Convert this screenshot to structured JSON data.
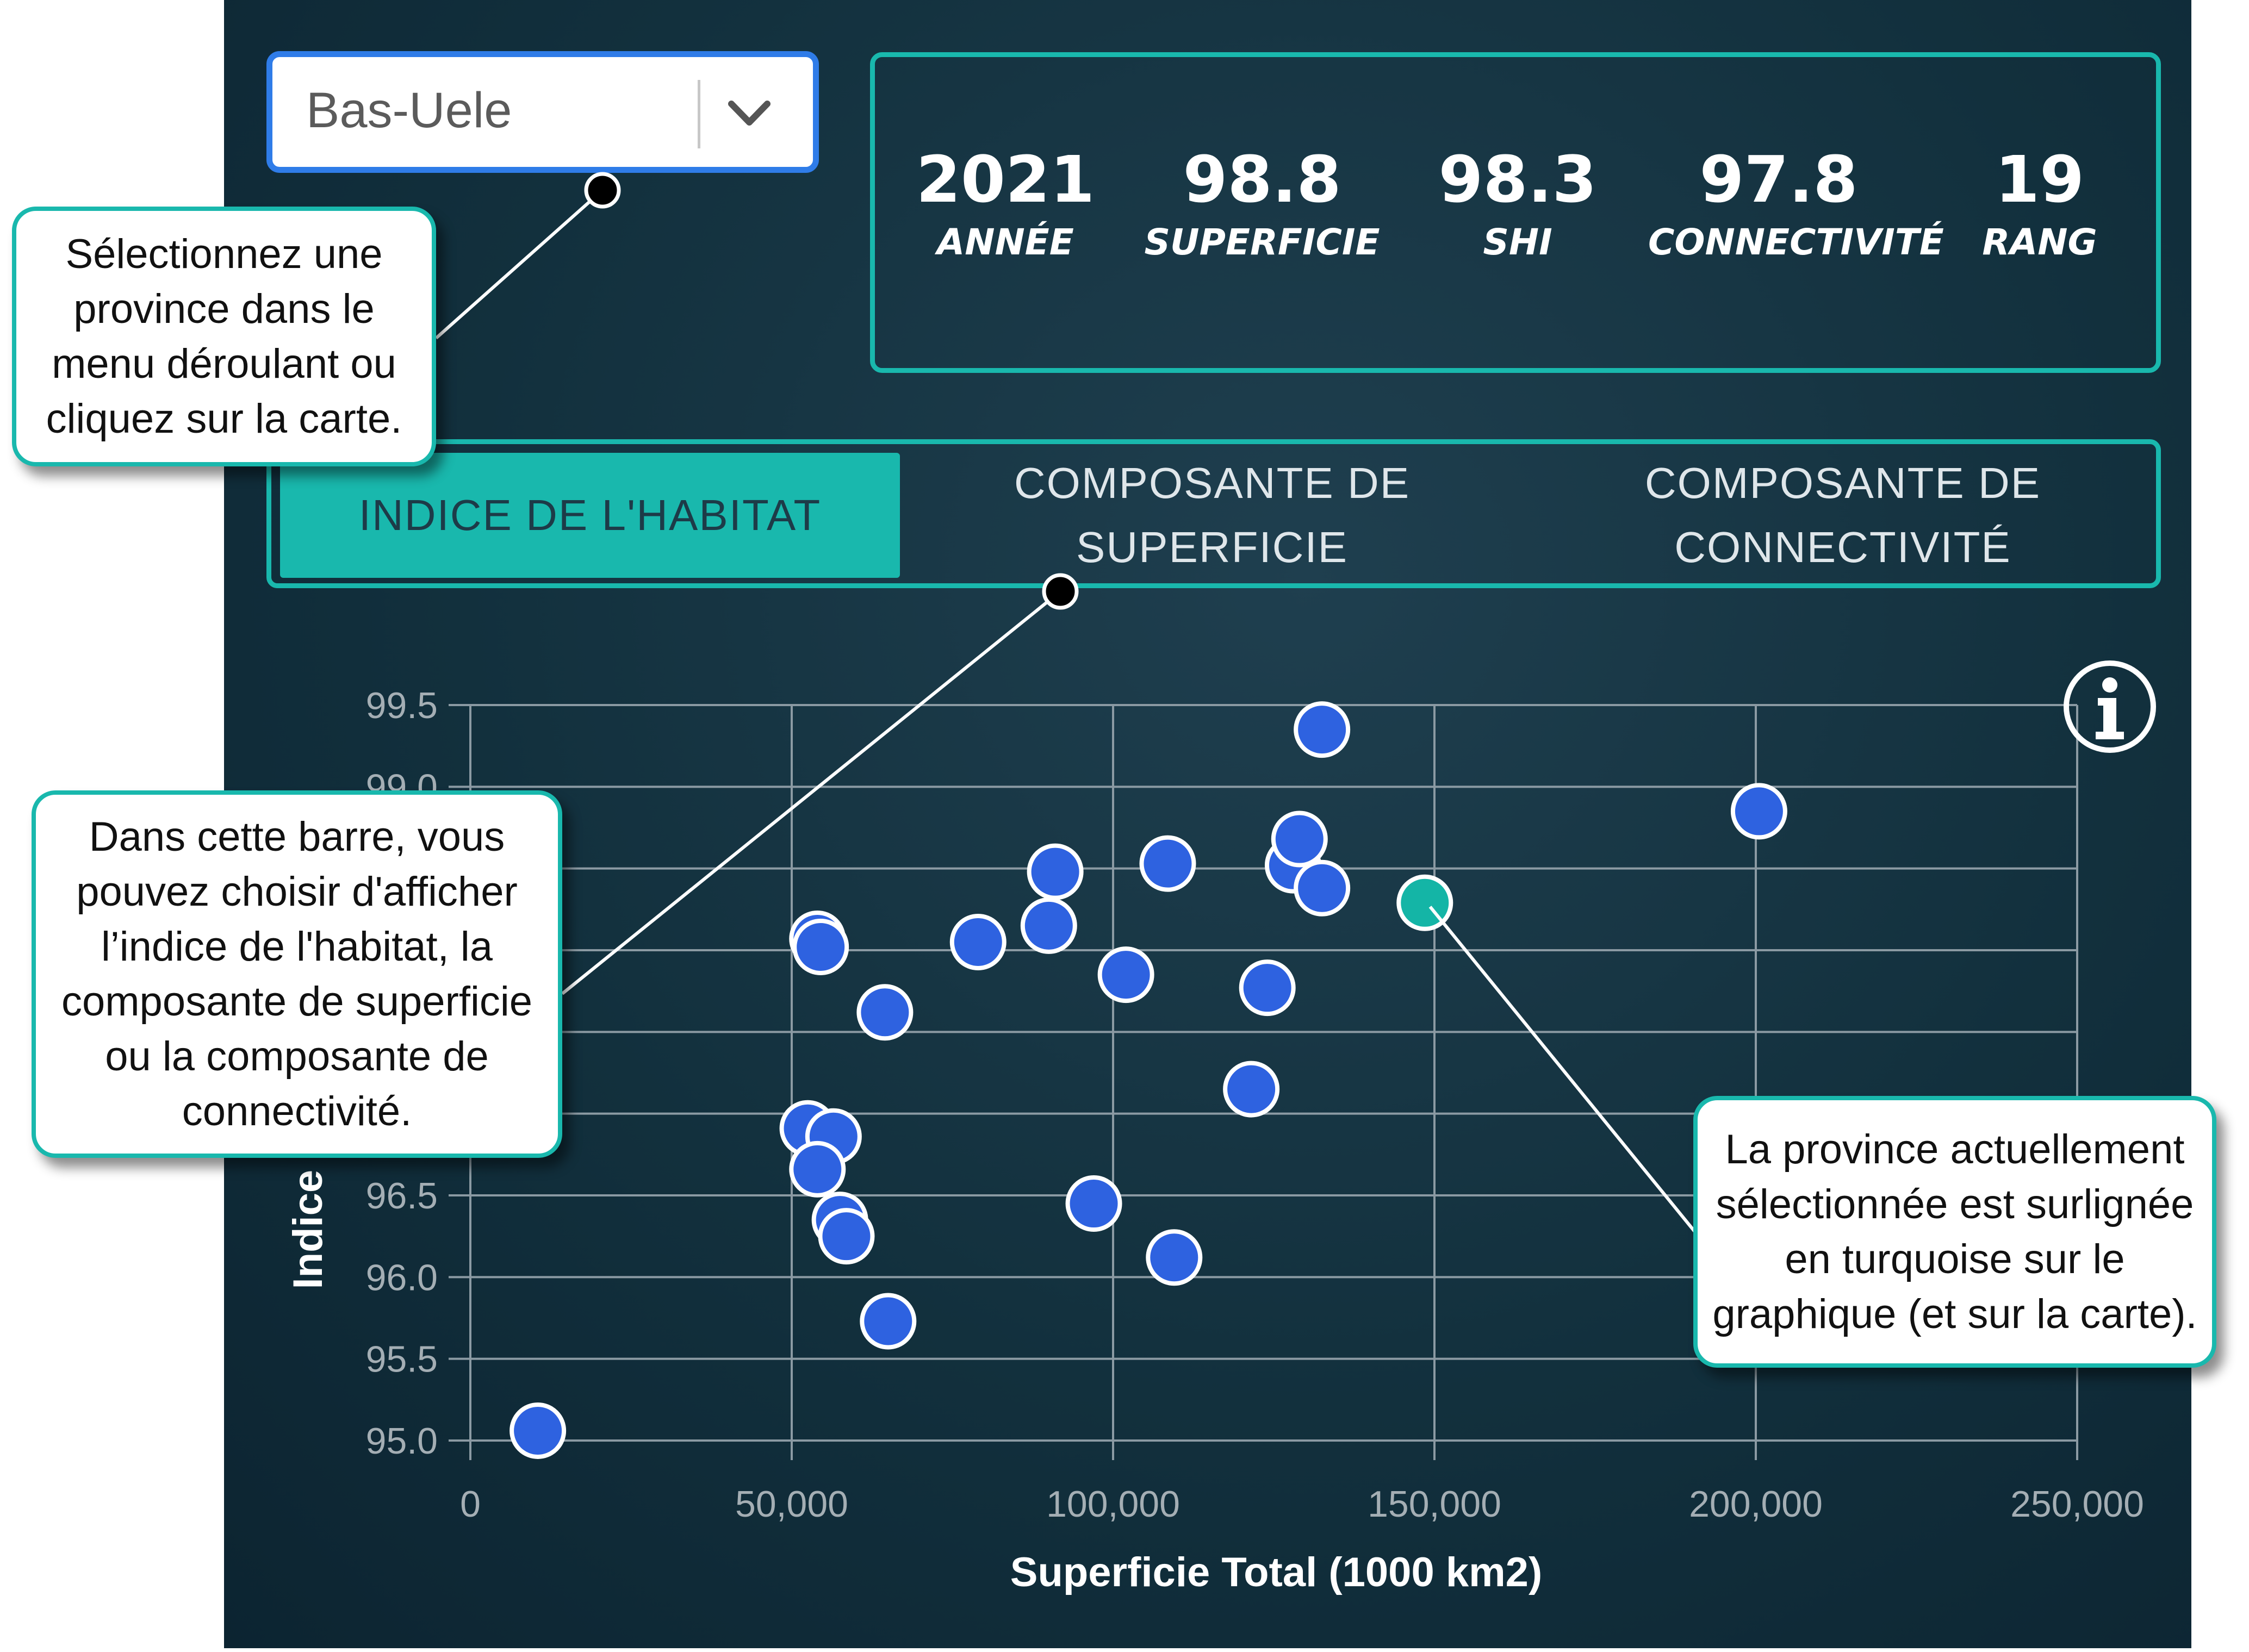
{
  "dropdown": {
    "selected": "Bas-Uele",
    "chevron_icon": "chevron-down-icon"
  },
  "stats": [
    {
      "value": "2021",
      "label": "ANNÉE"
    },
    {
      "value": "98.8",
      "label": "SUPERFICIE"
    },
    {
      "value": "98.3",
      "label": "SHI"
    },
    {
      "value": "97.8",
      "label": "CONNECTIVITÉ"
    },
    {
      "value": "19",
      "label": "RANG"
    }
  ],
  "tabs": [
    {
      "label": "INDICE DE L'HABITAT",
      "active": true
    },
    {
      "label": "COMPOSANTE DE SUPERFICIE",
      "active": false
    },
    {
      "label": "COMPOSANTE DE CONNECTIVITÉ",
      "active": false
    }
  ],
  "chart_data": {
    "type": "scatter",
    "xlabel": "Superficie Total (1000 km2)",
    "ylabel": "Indice d'Ha…es",
    "xlim": [
      0,
      250000
    ],
    "ylim": [
      95.0,
      99.5
    ],
    "x_ticks": [
      "0",
      "50,000",
      "100,000",
      "150,000",
      "200,000",
      "250,000"
    ],
    "y_ticks": [
      "95.0",
      "95.5",
      "96.0",
      "96.5",
      "",
      "",
      "",
      "",
      "99.0",
      "99.5"
    ],
    "grid": true,
    "info_icon": "info-icon",
    "points": [
      {
        "x": 10500,
        "y": 95.06
      },
      {
        "x": 54000,
        "y": 98.07
      },
      {
        "x": 54500,
        "y": 98.02
      },
      {
        "x": 64500,
        "y": 97.62
      },
      {
        "x": 52500,
        "y": 96.91
      },
      {
        "x": 56500,
        "y": 96.86
      },
      {
        "x": 54000,
        "y": 96.66
      },
      {
        "x": 57500,
        "y": 96.35
      },
      {
        "x": 58500,
        "y": 96.25
      },
      {
        "x": 65000,
        "y": 95.73
      },
      {
        "x": 79000,
        "y": 98.05
      },
      {
        "x": 91000,
        "y": 98.48
      },
      {
        "x": 90000,
        "y": 98.15
      },
      {
        "x": 102000,
        "y": 97.85
      },
      {
        "x": 108500,
        "y": 98.53
      },
      {
        "x": 97000,
        "y": 96.45
      },
      {
        "x": 109500,
        "y": 96.12
      },
      {
        "x": 124000,
        "y": 97.77
      },
      {
        "x": 121500,
        "y": 97.15
      },
      {
        "x": 128000,
        "y": 98.52
      },
      {
        "x": 129000,
        "y": 98.68
      },
      {
        "x": 132500,
        "y": 98.38
      },
      {
        "x": 132500,
        "y": 99.35
      },
      {
        "x": 200500,
        "y": 98.85
      },
      {
        "x": 148500,
        "y": 98.29,
        "selected": true
      }
    ],
    "colors": {
      "point": "#2e62e0",
      "selected": "#14b5a6",
      "grid": "#8b9aa3",
      "tick": "#a4aeb4"
    }
  },
  "callouts": [
    {
      "text": "Sélectionnez une province dans le menu déroulant ou cliquez sur la carte."
    },
    {
      "text": "Dans cette barre, vous pouvez choisir d'afficher l’indice de l'habitat, la composante de superficie ou la composante de connectivité."
    },
    {
      "text": "La province actuellement sélectionnée est surlignée en turquoise sur le graphique (et sur la carte)."
    }
  ]
}
